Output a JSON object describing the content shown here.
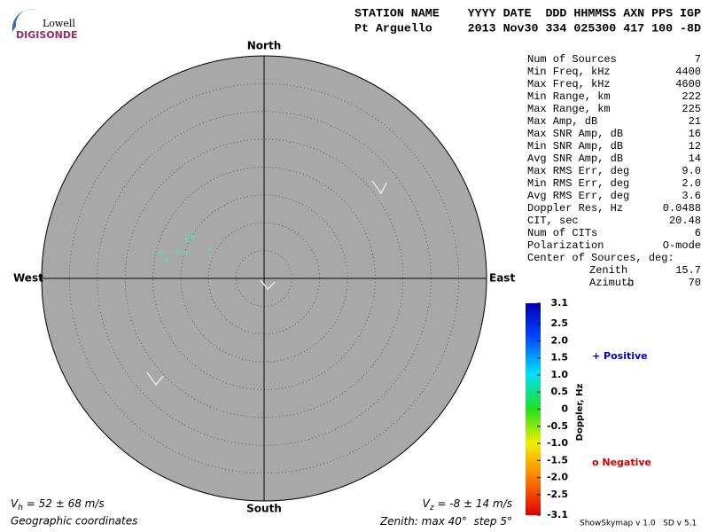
{
  "logo": {
    "top": "Lowell",
    "name": "DIGISONDE"
  },
  "header": {
    "labels": "STATION NAME    YYYY DATE  DDD HHMMSS AXN PPS IGP",
    "values": "Pt Arguello     2013 Nov30 334 025300 417 100 -8D"
  },
  "chart_data": {
    "type": "skymap",
    "directions": {
      "north": "North",
      "south": "South",
      "east": "East",
      "west": "West"
    },
    "zenith_max": 40,
    "zenith_step": 5,
    "sources": [
      {
        "zenith": 19.2,
        "azimuth": 284,
        "color": "#40e8b0"
      },
      {
        "zenith": 17.9,
        "azimuth": 281,
        "color": "#40e8b0"
      },
      {
        "zenith": 16.3,
        "azimuth": 287,
        "color": "#40e8b0"
      },
      {
        "zenith": 15.7,
        "azimuth": 297,
        "color": "#40e8b0"
      },
      {
        "zenith": 14.9,
        "azimuth": 300,
        "color": "#40e8b0"
      },
      {
        "zenith": 14.7,
        "azimuth": 288,
        "color": "#40e8b0"
      },
      {
        "zenith": 11.1,
        "azimuth": 298,
        "color": "#40e8b0"
      }
    ],
    "colorbar": {
      "label": "Doppler, Hz",
      "lim": [
        -3.1,
        3.1
      ],
      "ticks": [
        3.1,
        2.5,
        {
          "value": 2,
          "label": "2.0"
        },
        1.5,
        {
          "value": 1,
          "label": "1.0"
        },
        0.5,
        0,
        -0.5,
        {
          "value": -1,
          "label": "-1.0"
        },
        -1.5,
        {
          "value": -2,
          "label": "-2.0"
        },
        -2.5,
        -3.1
      ]
    },
    "legend": {
      "positive": "+ Positive",
      "negative": "o Negative"
    }
  },
  "stats": {
    "rows": [
      [
        "Num of Sources",
        "7"
      ],
      [
        "Min Freq, kHz",
        "4400"
      ],
      [
        "Max Freq, kHz",
        "4600"
      ],
      [
        "Min Range, km",
        "222"
      ],
      [
        "Max Range, km",
        "225"
      ],
      [
        "Max Amp, dB",
        "21"
      ],
      [
        "Max SNR Amp, dB",
        "16"
      ],
      [
        "Min SNR Amp, dB",
        "12"
      ],
      [
        "Avg SNR Amp, dB",
        "14"
      ],
      [
        "Max RMS Err, deg",
        "9.0"
      ],
      [
        "Min RMS Err, deg",
        "2.0"
      ],
      [
        "Avg RMS Err, deg",
        "3.6"
      ],
      [
        "Doppler Res, Hz",
        "0.0488"
      ],
      [
        "CIT, sec",
        "20.48"
      ],
      [
        "Num of CITs",
        "6"
      ],
      [
        "Polarization",
        "O-mode"
      ]
    ],
    "center": {
      "title": "Center of Sources, deg:",
      "rows": [
        [
          "Zenith",
          "15.7"
        ],
        [
          "Azimuth",
          "70"
        ]
      ]
    }
  },
  "footer": {
    "vh": {
      "symbol": "V",
      "sub": "h",
      "text": " = 52 ± 68 m/s"
    },
    "vz": {
      "symbol": "V",
      "sub": "z",
      "text": " = -8 ± 14 m/s"
    },
    "coords": "Geographic coordinates",
    "zenith_prefix": "Zenith: max",
    "unit": "°",
    "step_prefix": "step",
    "version": "ShowSkymap v 1.0   SD v 5.1"
  }
}
